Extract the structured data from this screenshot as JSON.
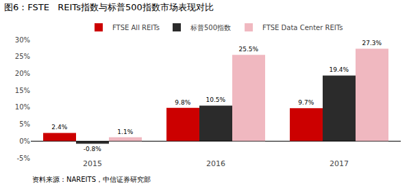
{
  "chart_data": {
    "type": "bar",
    "title": "图6：FSTE   REITs指数与标普500指数市场表现对比",
    "annotations": [
      "资料来源：NAREITS，中信证券研究部"
    ],
    "categories": [
      "2015",
      "2016",
      "2017"
    ],
    "series": [
      {
        "name": "FTSE All REITs",
        "color": "#CC0000",
        "values": [
          2.4,
          9.8,
          9.7
        ],
        "value_labels": [
          "2.4%",
          "9.8%",
          "9.7%"
        ]
      },
      {
        "name": "标普500指数",
        "color": "#2b2b2b",
        "values": [
          -0.8,
          10.5,
          19.4
        ],
        "value_labels": [
          "-0.8%",
          "10.5%",
          "19.4%"
        ]
      },
      {
        "name": "FTSE Data Center REITs",
        "color": "#F0B8C0",
        "values": [
          1.1,
          25.5,
          27.3
        ],
        "value_labels": [
          "1.1%",
          "25.5%",
          "27.3%"
        ]
      }
    ],
    "ylim": [
      -5,
      30
    ],
    "yticks": [
      {
        "value": -5,
        "label": "-5%"
      },
      {
        "value": 0,
        "label": "0%"
      },
      {
        "value": 5,
        "label": "5%"
      },
      {
        "value": 10,
        "label": "10%"
      },
      {
        "value": 15,
        "label": "15%"
      },
      {
        "value": 20,
        "label": "20%"
      },
      {
        "value": 25,
        "label": "25%"
      },
      {
        "value": 30,
        "label": "30%"
      }
    ],
    "data_labels": true,
    "grid": false,
    "legend": "top"
  }
}
